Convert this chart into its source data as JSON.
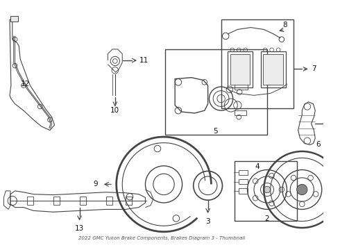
{
  "bg_color": "#ffffff",
  "line_color": "#444444",
  "fig_width": 4.9,
  "fig_height": 3.6,
  "dpi": 100,
  "title": "2022 GMC Yukon Brake Components, Brakes Diagram 3 - Thumbnail"
}
